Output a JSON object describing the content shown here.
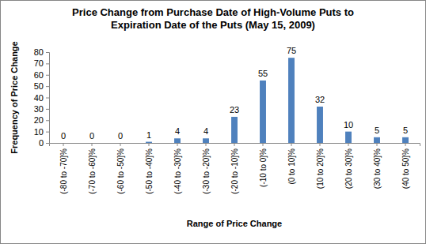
{
  "chart_data": {
    "type": "bar",
    "title": "Price Change from Purchase Date of High-Volume Puts to Expiration Date of the Puts (May 15, 2009)",
    "x_label": "Range of Price Change",
    "y_label": "Frequency of Price Change",
    "categories": [
      "(-80 to -70]%",
      "(-70 to -60]%",
      "(-60 to -50]%",
      "(-50 to -40]%",
      "(-40 to -30]%",
      "(-30 to -20]%",
      "(-20 to -10]%",
      "(-10 to 0]%",
      "(0 to 10]%",
      "(10 to 20]%",
      "(20 to 30]%",
      "(30 to 40]%",
      "(40 to 50]%"
    ],
    "values": [
      0,
      0,
      0,
      1,
      4,
      4,
      23,
      55,
      75,
      32,
      10,
      5,
      5
    ],
    "color": "#4f81bd",
    "ylim": [
      0,
      80
    ],
    "yticks": [
      0,
      10,
      20,
      30,
      40,
      50,
      60,
      70,
      80
    ],
    "grid": false,
    "data_labels": true
  }
}
